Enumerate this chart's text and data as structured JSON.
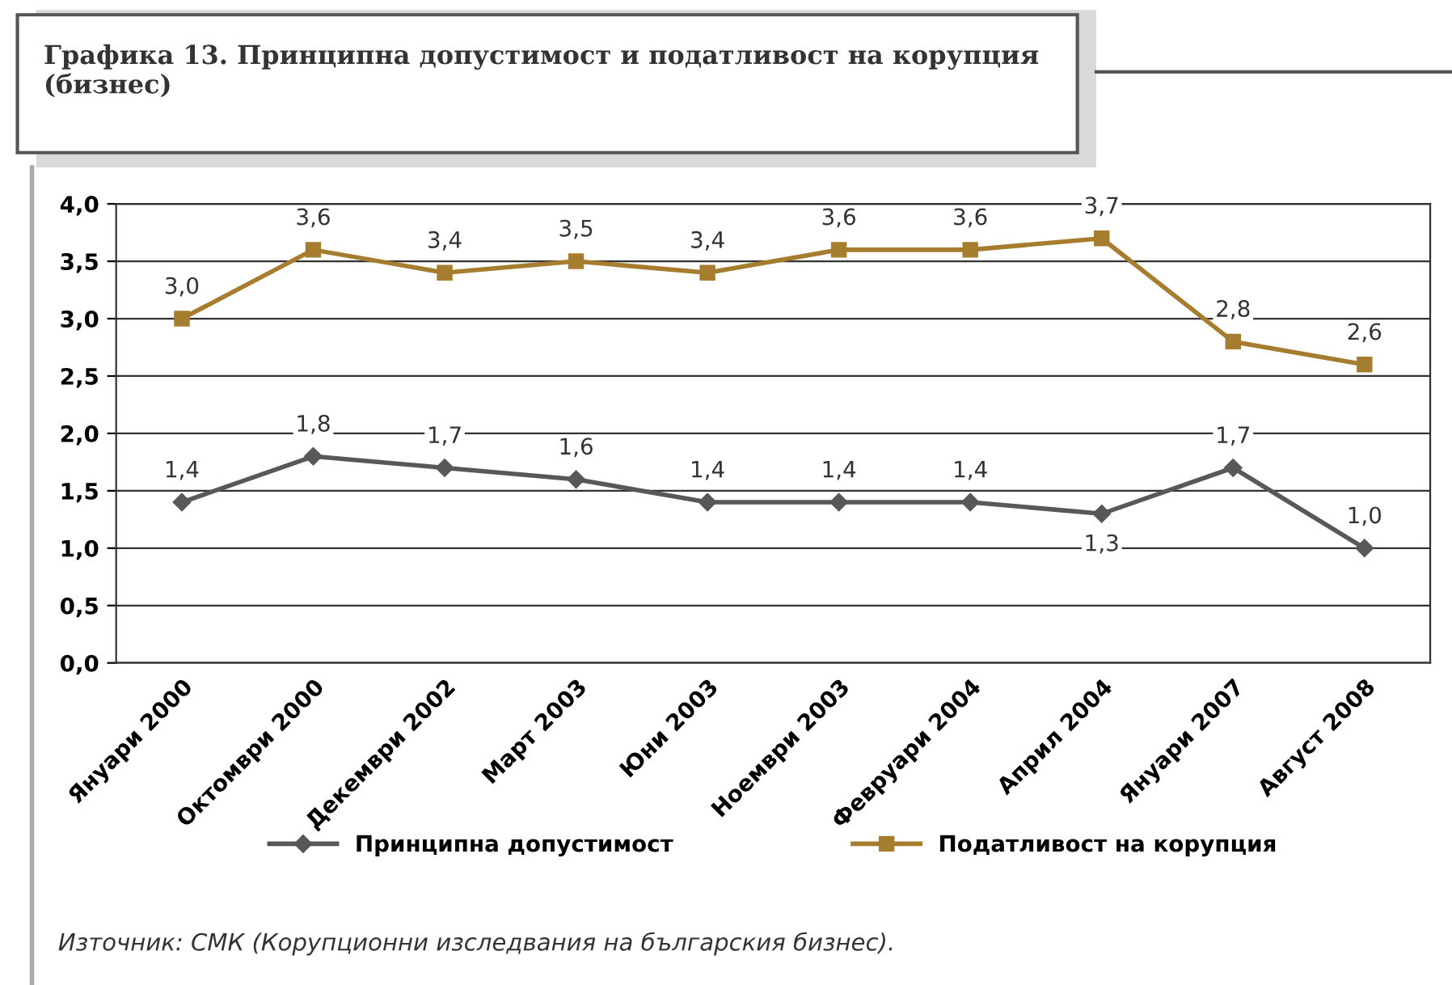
{
  "chart_data": {
    "type": "line",
    "title": "Графика 13. Принципна допустимост и податливост на корупция (бизнес)",
    "categories": [
      "Януари 2000",
      "Октомври 2000",
      "Декември 2002",
      "Март 2003",
      "Юни 2003",
      "Ноември 2003",
      "Февруари 2004",
      "Април 2004",
      "Януари 2007",
      "Август 2008"
    ],
    "series": [
      {
        "name": "Принципна допустимост",
        "color": "#58585a",
        "marker": "diamond",
        "values": [
          1.4,
          1.8,
          1.7,
          1.6,
          1.4,
          1.4,
          1.4,
          1.3,
          1.7,
          1.0
        ],
        "value_labels": [
          "1,4",
          "1,8",
          "1,7",
          "1,6",
          "1,4",
          "1,4",
          "1,4",
          "1,3",
          "1,7",
          "1,0"
        ]
      },
      {
        "name": "Податливост на корупция",
        "color": "#a67c2e",
        "marker": "square",
        "values": [
          3.0,
          3.6,
          3.4,
          3.5,
          3.4,
          3.6,
          3.6,
          3.7,
          2.8,
          2.6
        ],
        "value_labels": [
          "3,0",
          "3,6",
          "3,4",
          "3,5",
          "3,4",
          "3,6",
          "3,6",
          "3,7",
          "2,8",
          "2,6"
        ]
      }
    ],
    "ylim": [
      0,
      4
    ],
    "yticks": [
      {
        "value": 0,
        "label": "0,0"
      },
      {
        "value": 0.5,
        "label": "0,5"
      },
      {
        "value": 1,
        "label": "1,0"
      },
      {
        "value": 1.5,
        "label": "1,5"
      },
      {
        "value": 2,
        "label": "2,0"
      },
      {
        "value": 2.5,
        "label": "2,5"
      },
      {
        "value": 3,
        "label": "3,0"
      },
      {
        "value": 3.5,
        "label": "3,5"
      },
      {
        "value": 4,
        "label": "4,0"
      }
    ],
    "grid": "y",
    "legend": "bottom",
    "line_style": "solid",
    "annotations": [
      "Източник: СМК (Корупционни изследвания на българския бизнес)."
    ]
  }
}
